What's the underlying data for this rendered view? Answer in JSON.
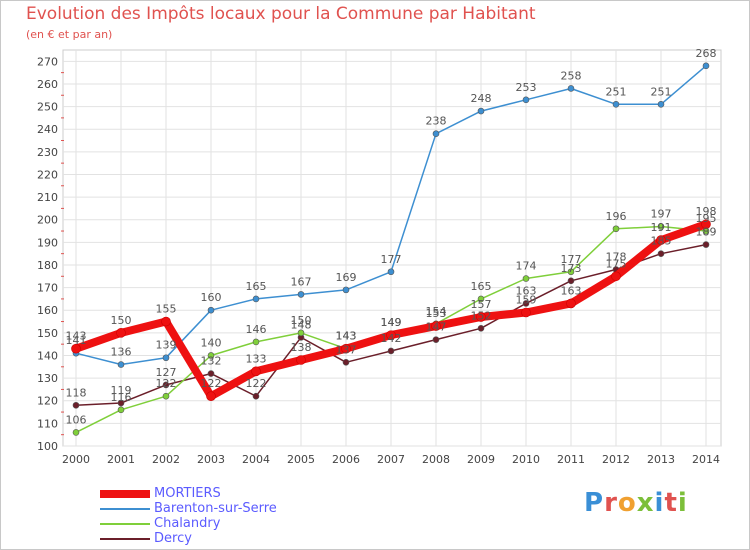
{
  "title": "Evolution des Impôts locaux pour la Commune par Habitant",
  "subtitle": "(en € et par an)",
  "logo": {
    "text": "Proxiti",
    "colors": [
      "#3a8fd6",
      "#e0524f",
      "#f0a030",
      "#7cbf3a",
      "#3a8fd6",
      "#e0524f",
      "#7cbf3a"
    ]
  },
  "chart_data": {
    "type": "line",
    "x": [
      2000,
      2001,
      2002,
      2003,
      2004,
      2005,
      2006,
      2007,
      2008,
      2009,
      2010,
      2011,
      2012,
      2013,
      2014
    ],
    "ylim": [
      100,
      275
    ],
    "yticks": [
      100,
      110,
      120,
      130,
      140,
      150,
      160,
      170,
      180,
      190,
      200,
      210,
      220,
      230,
      240,
      250,
      260,
      270
    ],
    "grid": true,
    "legend_position": "bottom-left",
    "series": [
      {
        "name": "Dercy",
        "color": "#6b1f2a",
        "width": 1.5,
        "marker": 4,
        "values": [
          118,
          119,
          127,
          132,
          122,
          148,
          137,
          142,
          147,
          152,
          163,
          173,
          178,
          185,
          189
        ]
      },
      {
        "name": "Chalandry",
        "color": "#7fcf3a",
        "width": 1.5,
        "marker": 4,
        "values": [
          106,
          116,
          122,
          140,
          146,
          150,
          143,
          149,
          154,
          165,
          174,
          177,
          196,
          197,
          195
        ]
      },
      {
        "name": "Barenton-sur-Serre",
        "color": "#3d8fd1",
        "width": 1.5,
        "marker": 4,
        "values": [
          141,
          136,
          139,
          160,
          165,
          167,
          169,
          177,
          238,
          248,
          253,
          258,
          251,
          251,
          268
        ]
      },
      {
        "name": "MORTIERS",
        "color": "#ee1111",
        "width": 8,
        "marker": 7,
        "values": [
          143,
          150,
          155,
          122,
          133,
          138,
          143,
          149,
          153,
          157,
          159,
          163,
          175,
          191,
          198
        ]
      }
    ],
    "data_labels": [
      [
        "118",
        "119",
        "127",
        "132",
        "122",
        "148",
        "137",
        "142",
        "147",
        "152",
        "163",
        "173",
        "178",
        "185",
        "189"
      ],
      [
        "106",
        "116",
        "122",
        "140",
        "146",
        "150",
        "143",
        "149",
        "154",
        "165",
        "174",
        "177",
        "196",
        "197",
        "195"
      ],
      [
        "141",
        "136",
        "139",
        "160",
        "165",
        "167",
        "169",
        "177",
        "238",
        "248",
        "253",
        "258",
        "251",
        "251",
        "268"
      ],
      [
        "143",
        "150",
        "155",
        "122",
        "133",
        "138",
        "143",
        "149",
        "153",
        "157",
        "159",
        "163",
        "175",
        "191",
        "198"
      ]
    ]
  },
  "legend": [
    {
      "name": "MORTIERS",
      "color": "#ee1111",
      "thickness": 8
    },
    {
      "name": "Barenton-sur-Serre",
      "color": "#3d8fd1",
      "thickness": 2
    },
    {
      "name": "Chalandry",
      "color": "#7fcf3a",
      "thickness": 2
    },
    {
      "name": "Dercy",
      "color": "#6b1f2a",
      "thickness": 2
    }
  ]
}
